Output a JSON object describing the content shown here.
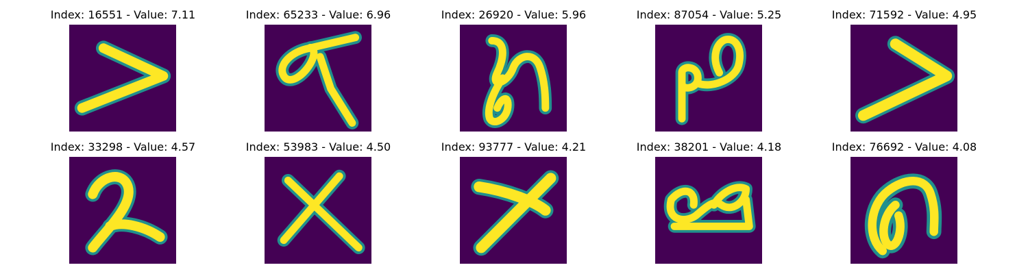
{
  "panels": [
    {
      "title": "Index: 16551 - Value: 7.11",
      "shape": "chevron-right-icon"
    },
    {
      "title": "Index: 65233 - Value: 6.96",
      "shape": "loop-t-glyph-icon"
    },
    {
      "title": "Index: 26920 - Value: 5.96",
      "shape": "loop-scribble-icon"
    },
    {
      "title": "Index: 87054 - Value: 5.25",
      "shape": "loop-p-glyph-icon"
    },
    {
      "title": "Index: 71592 - Value: 4.95",
      "shape": "chevron-right-icon"
    },
    {
      "title": "Index: 33298 - Value: 4.57",
      "shape": "digit-two-glyph-icon"
    },
    {
      "title": "Index: 53983 - Value: 4.50",
      "shape": "x-cross-glyph-icon"
    },
    {
      "title": "Index: 93777 - Value: 4.21",
      "shape": "x-cross-glyph-icon"
    },
    {
      "title": "Index: 38201 - Value: 4.18",
      "shape": "double-loop-glyph-icon"
    },
    {
      "title": "Index: 76692 - Value: 4.08",
      "shape": "loop-a-glyph-icon"
    }
  ],
  "colors": {
    "background": "#440154",
    "stroke": "#fde725",
    "edge": "#21908d"
  }
}
